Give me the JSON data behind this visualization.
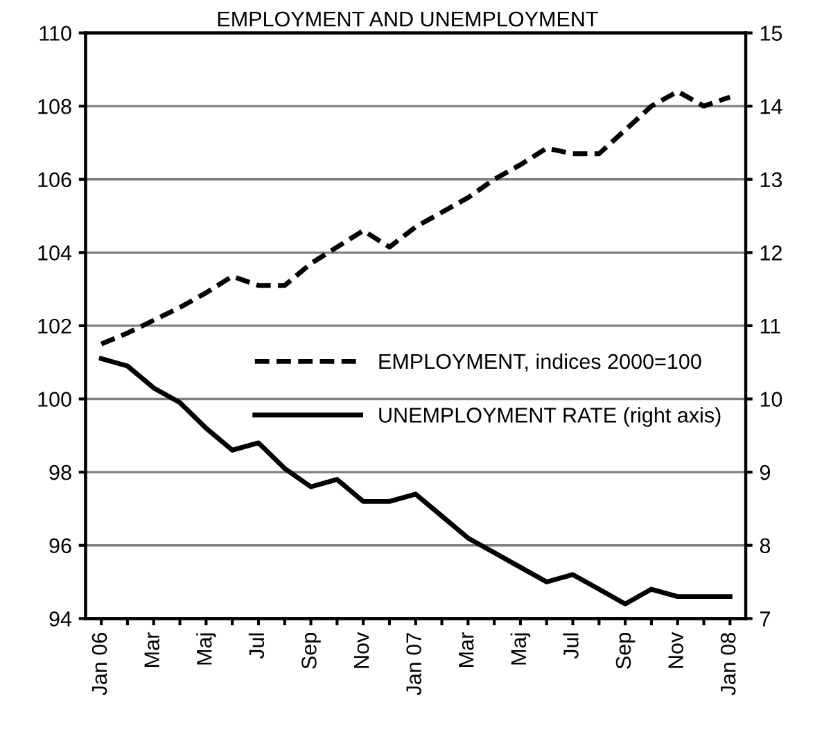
{
  "chart_data": {
    "type": "line",
    "title": "EMPLOYMENT AND UNEMPLOYMENT",
    "categories": [
      "Jan 06",
      null,
      "Mar",
      null,
      "Maj",
      null,
      "Jul",
      null,
      "Sep",
      null,
      "Nov",
      null,
      "Jan 07",
      null,
      "Mar",
      null,
      "Maj",
      null,
      "Jul",
      null,
      "Sep",
      null,
      "Nov",
      null,
      "Jan 08"
    ],
    "series": [
      {
        "name": "EMPLOYMENT, indices 2000=100",
        "color": "#000000",
        "line_style": "dashed",
        "values": [
          101.5,
          101.8,
          102.15,
          102.5,
          102.9,
          103.35,
          103.1,
          103.1,
          103.7,
          104.15,
          104.6,
          104.15,
          104.7,
          105.1,
          105.5,
          106.0,
          106.4,
          106.85,
          106.7,
          106.7,
          107.35,
          108.0,
          108.4,
          108.0,
          108.25
        ]
      },
      {
        "name": "UNEMPLOYMENT RATE (right axis)",
        "color": "#000000",
        "line_style": "solid",
        "axis": "y2",
        "values": [
          10.55,
          10.45,
          10.15,
          9.95,
          9.6,
          9.3,
          9.4,
          9.05,
          8.8,
          8.9,
          8.6,
          8.6,
          8.7,
          8.4,
          8.1,
          7.9,
          7.7,
          7.5,
          7.6,
          7.4,
          7.2,
          7.4,
          7.3,
          7.3,
          7.3
        ]
      }
    ],
    "ylim": [
      94,
      110
    ],
    "yticks": [
      94,
      96,
      98,
      100,
      102,
      104,
      106,
      108,
      110
    ],
    "y2lim": [
      7,
      15
    ],
    "y2ticks": [
      7,
      8,
      9,
      10,
      11,
      12,
      13,
      14,
      15
    ],
    "grid": "y",
    "legend": "center",
    "marker": "none"
  }
}
